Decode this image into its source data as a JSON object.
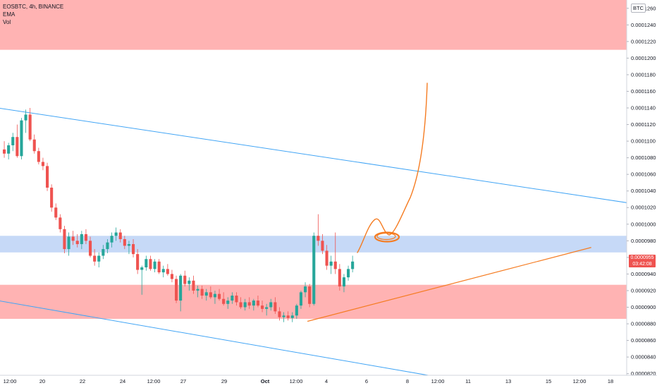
{
  "legend": {
    "symbol": "EOSBTC, 4h, BINANCE",
    "ema": "EMA",
    "vol": "Vol"
  },
  "currency": "BTC",
  "last_price": {
    "value": "0.0000955",
    "countdown": "03:42:08",
    "color": "#ef5350"
  },
  "colors": {
    "up": "#26a69a",
    "down": "#ef5350",
    "red_zone": "#ffb3b3",
    "blue_zone": "#c6d9f7",
    "trend_line": "#42a5f5",
    "drawing": "#f57c22"
  },
  "chart_data": {
    "type": "candlestick",
    "title": "EOSBTC, 4h, BINANCE",
    "price_axis_ticks": [
      "0.0001260",
      "0.0001240",
      "0.0001220",
      "0.0001200",
      "0.0001180",
      "0.0001160",
      "0.0001140",
      "0.0001120",
      "0.0001100",
      "0.0001080",
      "0.0001060",
      "0.0001040",
      "0.0001020",
      "0.0001000",
      "0.0000980",
      "0.0000960",
      "0.0000940",
      "0.0000920",
      "0.0000900",
      "0.0000880",
      "0.0000860",
      "0.0000840",
      "0.0000820"
    ],
    "ylim": [
      8.18e-05,
      0.000127
    ],
    "time_axis_ticks": [
      "12:00",
      "20",
      "22",
      "24",
      "12:00",
      "27",
      "29",
      "Oct",
      "12:00",
      "4",
      "6",
      "8",
      "12:00",
      "11",
      "13",
      "15",
      "12:00",
      "18"
    ],
    "zones": [
      {
        "kind": "resistance",
        "from": 0.000121,
        "to": 0.000127
      },
      {
        "kind": "key_level",
        "from": 9.66e-05,
        "to": 9.86e-05
      },
      {
        "kind": "support",
        "from": 8.86e-05,
        "to": 9.27e-05
      }
    ],
    "candles": [
      [
        0.000109,
        0.00011,
        0.000108,
        0.0001085
      ],
      [
        0.0001085,
        0.0001098,
        0.0001078,
        0.0001095
      ],
      [
        0.0001095,
        0.000111,
        0.0001088,
        0.0001105
      ],
      [
        0.0001105,
        0.000112,
        0.000108,
        0.0001082
      ],
      [
        0.0001082,
        0.0001128,
        0.0001078,
        0.0001125
      ],
      [
        0.0001125,
        0.0001138,
        0.000111,
        0.0001132
      ],
      [
        0.0001132,
        0.000114,
        0.00011,
        0.0001102
      ],
      [
        0.0001102,
        0.0001108,
        0.0001085,
        0.0001088
      ],
      [
        0.0001088,
        0.0001092,
        0.0001072,
        0.0001075
      ],
      [
        0.0001075,
        0.000108,
        0.0001065,
        0.000107
      ],
      [
        0.000107,
        0.0001074,
        0.000104,
        0.0001044
      ],
      [
        0.0001044,
        0.0001048,
        0.0001015,
        0.000102
      ],
      [
        0.000102,
        0.0001025,
        0.0001005,
        0.0001008
      ],
      [
        0.0001008,
        0.0001012,
        9.9e-05,
        9.94e-05
      ],
      [
        9.94e-05,
        9.98e-05,
        9.65e-05,
        9.7e-05
      ],
      [
        9.7e-05,
        9.9e-05,
        9.62e-05,
        9.85e-05
      ],
      [
        9.85e-05,
        9.92e-05,
        9.75e-05,
        9.8e-05
      ],
      [
        9.8e-05,
        9.88e-05,
        9.72e-05,
        9.76e-05
      ],
      [
        9.76e-05,
        9.92e-05,
        9.7e-05,
        9.88e-05
      ],
      [
        9.88e-05,
        9.94e-05,
        9.76e-05,
        9.8e-05
      ],
      [
        9.8e-05,
        9.85e-05,
        9.6e-05,
        9.62e-05
      ],
      [
        9.62e-05,
        9.7e-05,
        9.5e-05,
        9.55e-05
      ],
      [
        9.55e-05,
        9.66e-05,
        9.48e-05,
        9.62e-05
      ],
      [
        9.62e-05,
        9.75e-05,
        9.58e-05,
        9.7e-05
      ],
      [
        9.7e-05,
        9.82e-05,
        9.65e-05,
        9.78e-05
      ],
      [
        9.78e-05,
        9.9e-05,
        9.72e-05,
        9.86e-05
      ],
      [
        9.86e-05,
        9.96e-05,
        9.8e-05,
        9.9e-05
      ],
      [
        9.9e-05,
        9.94e-05,
        9.78e-05,
        9.82e-05
      ],
      [
        9.82e-05,
        9.86e-05,
        9.7e-05,
        9.74e-05
      ],
      [
        9.74e-05,
        9.8e-05,
        9.64e-05,
        9.76e-05
      ],
      [
        9.76e-05,
        9.82e-05,
        9.6e-05,
        9.64e-05
      ],
      [
        9.64e-05,
        9.7e-05,
        9.4e-05,
        9.45e-05
      ],
      [
        9.45e-05,
        9.5e-05,
        9.15e-05,
        9.48e-05
      ],
      [
        9.48e-05,
        9.62e-05,
        9.44e-05,
        9.58e-05
      ],
      [
        9.58e-05,
        9.62e-05,
        9.44e-05,
        9.46e-05
      ],
      [
        9.46e-05,
        9.58e-05,
        9.42e-05,
        9.55e-05
      ],
      [
        9.55e-05,
        9.58e-05,
        9.4e-05,
        9.42e-05
      ],
      [
        9.42e-05,
        9.5e-05,
        9.36e-05,
        9.46e-05
      ],
      [
        9.46e-05,
        9.52e-05,
        9.38e-05,
        9.4e-05
      ],
      [
        9.4e-05,
        9.45e-05,
        9.3e-05,
        9.34e-05
      ],
      [
        9.34e-05,
        9.38e-05,
        9.05e-05,
        9.08e-05
      ],
      [
        9.08e-05,
        9.4e-05,
        8.95e-05,
        9.38e-05
      ],
      [
        9.38e-05,
        9.44e-05,
        9.25e-05,
        9.28e-05
      ],
      [
        9.28e-05,
        9.36e-05,
        9.2e-05,
        9.32e-05
      ],
      [
        9.32e-05,
        9.38e-05,
        9.16e-05,
        9.2e-05
      ],
      [
        9.2e-05,
        9.26e-05,
        9.12e-05,
        9.22e-05
      ],
      [
        9.22e-05,
        9.26e-05,
        9.1e-05,
        9.14e-05
      ],
      [
        9.14e-05,
        9.22e-05,
        9.08e-05,
        9.18e-05
      ],
      [
        9.18e-05,
        9.25e-05,
        9.1e-05,
        9.12e-05
      ],
      [
        9.12e-05,
        9.2e-05,
        9.04e-05,
        9.16e-05
      ],
      [
        9.16e-05,
        9.22e-05,
        9.08e-05,
        9.1e-05
      ],
      [
        9.1e-05,
        9.18e-05,
        9.02e-05,
        9.04e-05
      ],
      [
        9.04e-05,
        9.12e-05,
        8.98e-05,
        9.08e-05
      ],
      [
        9.08e-05,
        9.18e-05,
        9.04e-05,
        9.14e-05
      ],
      [
        9.14e-05,
        9.18e-05,
        9.02e-05,
        9.06e-05
      ],
      [
        9.06e-05,
        9.12e-05,
        8.98e-05,
        9e-05
      ],
      [
        9e-05,
        9.1e-05,
        8.96e-05,
        9.06e-05
      ],
      [
        9.06e-05,
        9.12e-05,
        8.98e-05,
        9.02e-05
      ],
      [
        9.02e-05,
        9.1e-05,
        8.96e-05,
        9.08e-05
      ],
      [
        9.08e-05,
        9.14e-05,
        9e-05,
        9.02e-05
      ],
      [
        9.02e-05,
        9.08e-05,
        8.94e-05,
        8.98e-05
      ],
      [
        8.98e-05,
        9.04e-05,
        8.9e-05,
        9e-05
      ],
      [
        9e-05,
        9.1e-05,
        8.96e-05,
        9.06e-05
      ],
      [
        9.06e-05,
        9.12e-05,
        8.92e-05,
        8.95e-05
      ],
      [
        8.95e-05,
        9e-05,
        8.84e-05,
        8.88e-05
      ],
      [
        8.88e-05,
        8.94e-05,
        8.82e-05,
        8.9e-05
      ],
      [
        8.9e-05,
        8.95e-05,
        8.84e-05,
        8.87e-05
      ],
      [
        8.87e-05,
        8.94e-05,
        8.82e-05,
        8.9e-05
      ],
      [
        8.9e-05,
        9.04e-05,
        8.86e-05,
        9.02e-05
      ],
      [
        9.02e-05,
        9.2e-05,
        8.98e-05,
        9.18e-05
      ],
      [
        9.18e-05,
        9.3e-05,
        9.12e-05,
        9.25e-05
      ],
      [
        9.25e-05,
        9.28e-05,
        9e-05,
        9.04e-05
      ],
      [
        9.04e-05,
        9.9e-05,
        9.02e-05,
        9.86e-05
      ],
      [
        9.86e-05,
        0.0001012,
        9.74e-05,
        9.8e-05
      ],
      [
        9.8e-05,
        9.88e-05,
        9.64e-05,
        9.68e-05
      ],
      [
        9.68e-05,
        9.75e-05,
        9.45e-05,
        9.5e-05
      ],
      [
        9.5e-05,
        9.62e-05,
        9.4e-05,
        9.55e-05
      ],
      [
        9.55e-05,
        9.9e-05,
        9.4e-05,
        9.46e-05
      ],
      [
        9.46e-05,
        9.52e-05,
        9.2e-05,
        9.25e-05
      ],
      [
        9.25e-05,
        9.4e-05,
        9.18e-05,
        9.36e-05
      ],
      [
        9.36e-05,
        9.5e-05,
        9.32e-05,
        9.46e-05
      ],
      [
        9.46e-05,
        9.62e-05,
        9.42e-05,
        9.55e-05
      ]
    ],
    "trend_lines": [
      {
        "from": {
          "bar": -1,
          "price": 0.000114
        },
        "to": {
          "bar": 240,
          "price": 9.52e-05
        }
      },
      {
        "from": {
          "bar": -1,
          "price": 9.08e-05
        },
        "to": {
          "bar": 108,
          "price": 8.1e-05
        }
      }
    ],
    "projection": {
      "support_line": [
        [
          71,
          8.83e-05
        ],
        [
          137,
          9.72e-05
        ]
      ]
    }
  }
}
